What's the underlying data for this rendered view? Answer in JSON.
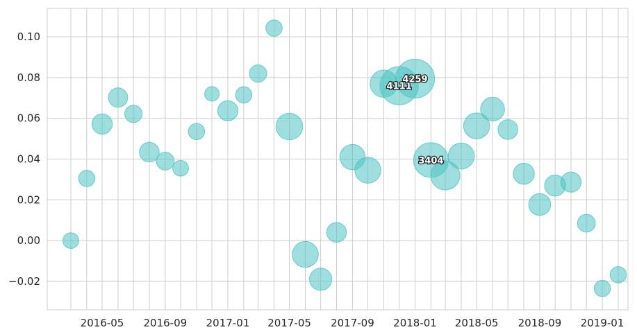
{
  "chart_data": {
    "type": "scatter",
    "title": "",
    "xlabel": "",
    "ylabel": "",
    "xlim": [
      "2016-01-15",
      "2019-02-20"
    ],
    "ylim": [
      -0.034,
      0.114
    ],
    "grid": true,
    "x_ticks": [
      "2016-05",
      "2016-09",
      "2017-01",
      "2017-05",
      "2017-09",
      "2018-01",
      "2018-05",
      "2018-09",
      "2019-01"
    ],
    "y_ticks": [
      "−0.02",
      "0.00",
      "0.02",
      "0.04",
      "0.06",
      "0.08",
      "0.10"
    ],
    "y_tick_values": [
      -0.02,
      0.0,
      0.02,
      0.04,
      0.06,
      0.08,
      0.1
    ],
    "bubble_color": "#4fc3c3",
    "size_annotations": [
      "4111",
      "4259",
      "3404"
    ],
    "points": [
      {
        "x": "2016-03-01",
        "y": 0.0,
        "size": 700
      },
      {
        "x": "2016-04-01",
        "y": 0.0305,
        "size": 750
      },
      {
        "x": "2016-05-01",
        "y": 0.0572,
        "size": 1150
      },
      {
        "x": "2016-06-01",
        "y": 0.0702,
        "size": 1050
      },
      {
        "x": "2016-07-01",
        "y": 0.0622,
        "size": 850
      },
      {
        "x": "2016-08-01",
        "y": 0.0434,
        "size": 1100
      },
      {
        "x": "2016-09-01",
        "y": 0.039,
        "size": 900
      },
      {
        "x": "2016-10-01",
        "y": 0.0355,
        "size": 700
      },
      {
        "x": "2016-11-01",
        "y": 0.0535,
        "size": 750
      },
      {
        "x": "2016-12-01",
        "y": 0.072,
        "size": 600
      },
      {
        "x": "2017-01-01",
        "y": 0.0637,
        "size": 1150
      },
      {
        "x": "2017-02-01",
        "y": 0.0715,
        "size": 750
      },
      {
        "x": "2017-03-01",
        "y": 0.082,
        "size": 850
      },
      {
        "x": "2017-04-01",
        "y": 0.1043,
        "size": 750
      },
      {
        "x": "2017-05-01",
        "y": 0.056,
        "size": 2000
      },
      {
        "x": "2017-06-01",
        "y": -0.0068,
        "size": 1900
      },
      {
        "x": "2017-07-01",
        "y": -0.019,
        "size": 1400
      },
      {
        "x": "2017-08-01",
        "y": 0.004,
        "size": 1100
      },
      {
        "x": "2017-09-01",
        "y": 0.041,
        "size": 1800
      },
      {
        "x": "2017-10-01",
        "y": 0.0345,
        "size": 1900
      },
      {
        "x": "2017-11-01",
        "y": 0.077,
        "size": 2100
      },
      {
        "x": "2017-12-01",
        "y": 0.076,
        "size": 4111,
        "label": "4111"
      },
      {
        "x": "2018-01-01",
        "y": 0.0795,
        "size": 4259,
        "label": "4259"
      },
      {
        "x": "2018-02-01",
        "y": 0.0395,
        "size": 3404,
        "label": "3404"
      },
      {
        "x": "2018-03-01",
        "y": 0.032,
        "size": 2400
      },
      {
        "x": "2018-04-01",
        "y": 0.0415,
        "size": 1900
      },
      {
        "x": "2018-05-01",
        "y": 0.0563,
        "size": 1900
      },
      {
        "x": "2018-06-01",
        "y": 0.0645,
        "size": 1600
      },
      {
        "x": "2018-07-01",
        "y": 0.0545,
        "size": 1100
      },
      {
        "x": "2018-08-01",
        "y": 0.0328,
        "size": 1250
      },
      {
        "x": "2018-09-01",
        "y": 0.0177,
        "size": 1350
      },
      {
        "x": "2018-10-01",
        "y": 0.027,
        "size": 1250
      },
      {
        "x": "2018-11-01",
        "y": 0.0287,
        "size": 1150
      },
      {
        "x": "2018-12-01",
        "y": 0.0085,
        "size": 900
      },
      {
        "x": "2019-01-01",
        "y": -0.0235,
        "size": 750
      },
      {
        "x": "2019-02-01",
        "y": -0.0168,
        "size": 750
      }
    ]
  }
}
